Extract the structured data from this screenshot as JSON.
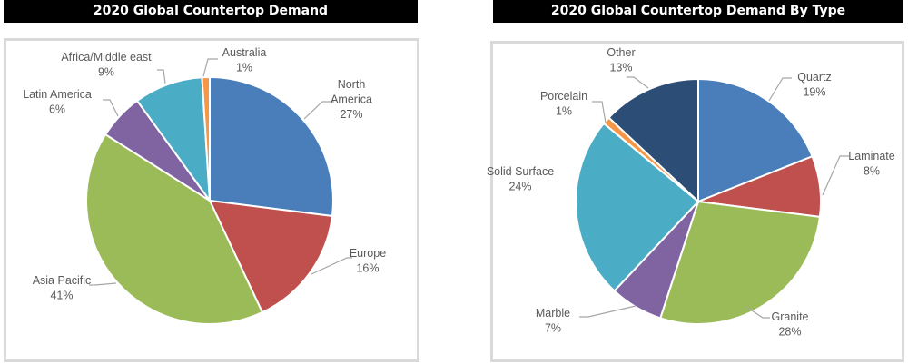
{
  "colors": {
    "blue": "#4a7ebb",
    "red": "#c0504d",
    "green": "#9bbb59",
    "purple": "#8064a2",
    "teal": "#4bacc6",
    "orange": "#f79646",
    "navy": "#2c4d75"
  },
  "chart_data": [
    {
      "type": "pie",
      "title": "2020 Global Countertop Demand",
      "unit": "%",
      "slices": [
        {
          "label": "North America",
          "value": 27,
          "display": "27%",
          "color": "#4a7ebb"
        },
        {
          "label": "Europe",
          "value": 16,
          "display": "16%",
          "color": "#c0504d"
        },
        {
          "label": "Asia Pacific",
          "value": 41,
          "display": "41%",
          "color": "#9bbb59"
        },
        {
          "label": "Latin America",
          "value": 6,
          "display": "6%",
          "color": "#8064a2"
        },
        {
          "label": "Africa/Middle east",
          "value": 9,
          "display": "9%",
          "color": "#4bacc6"
        },
        {
          "label": "Australia",
          "value": 1,
          "display": "1%",
          "color": "#f79646"
        }
      ],
      "start_angle": "12 o'clock, clockwise",
      "legend": "none (data labels)"
    },
    {
      "type": "pie",
      "title": "2020 Global Countertop Demand By Type",
      "unit": "%",
      "slices": [
        {
          "label": "Quartz",
          "value": 19,
          "display": "19%",
          "color": "#4a7ebb"
        },
        {
          "label": "Laminate",
          "value": 8,
          "display": "8%",
          "color": "#c0504d"
        },
        {
          "label": "Granite",
          "value": 28,
          "display": "28%",
          "color": "#9bbb59"
        },
        {
          "label": "Marble",
          "value": 7,
          "display": "7%",
          "color": "#8064a2"
        },
        {
          "label": "Solid Surface",
          "value": 24,
          "display": "24%",
          "color": "#4bacc6"
        },
        {
          "label": "Porcelain",
          "value": 1,
          "display": "1%",
          "color": "#f79646"
        },
        {
          "label": "Other",
          "value": 13,
          "display": "13%",
          "color": "#2c4d75"
        }
      ],
      "start_angle": "12 o'clock, clockwise",
      "legend": "none (data labels)"
    }
  ]
}
